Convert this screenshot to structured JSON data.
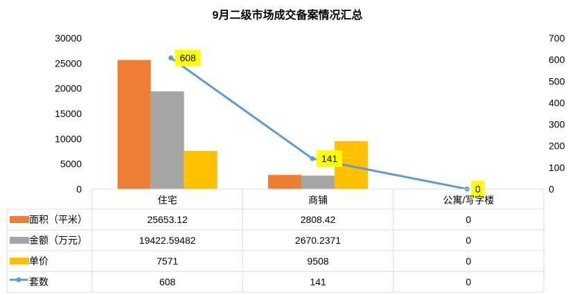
{
  "chart_data": {
    "type": "bar",
    "title": "9月二级市场成交备案情况汇总",
    "categories": [
      "住宅",
      "商铺",
      "公寓/写字楼"
    ],
    "y_left": {
      "ylim": [
        0,
        30000
      ],
      "ticks": [
        "0",
        "5000",
        "10000",
        "15000",
        "20000",
        "25000",
        "30000"
      ]
    },
    "y_right": {
      "ylim": [
        0,
        700
      ],
      "ticks": [
        "0",
        "100",
        "200",
        "300",
        "400",
        "500",
        "600",
        "700"
      ]
    },
    "series": [
      {
        "name": "面积（平米）",
        "type": "bar",
        "axis": "left",
        "color": "#ED7D31",
        "values": [
          25653.12,
          2808.42,
          0
        ],
        "labels": [
          "25653.12",
          "2808.42",
          "0"
        ]
      },
      {
        "name": "金额（万元）",
        "type": "bar",
        "axis": "left",
        "color": "#A5A5A5",
        "values": [
          19422.59482,
          2670.2371,
          0
        ],
        "labels": [
          "19422.59482",
          "2670.2371",
          "0"
        ]
      },
      {
        "name": "单价",
        "type": "bar",
        "axis": "left",
        "color": "#FFC000",
        "values": [
          7571,
          9508,
          0
        ],
        "labels": [
          "7571",
          "9508",
          "0"
        ]
      },
      {
        "name": "套数",
        "type": "line",
        "axis": "right",
        "color": "#5B9BD5",
        "values": [
          608,
          141,
          0
        ],
        "labels": [
          "608",
          "141",
          "0"
        ],
        "data_labels": [
          "608",
          "141",
          "0"
        ],
        "data_label_bg": "#FFFF00"
      }
    ],
    "grid": false,
    "legend": "data-table"
  }
}
